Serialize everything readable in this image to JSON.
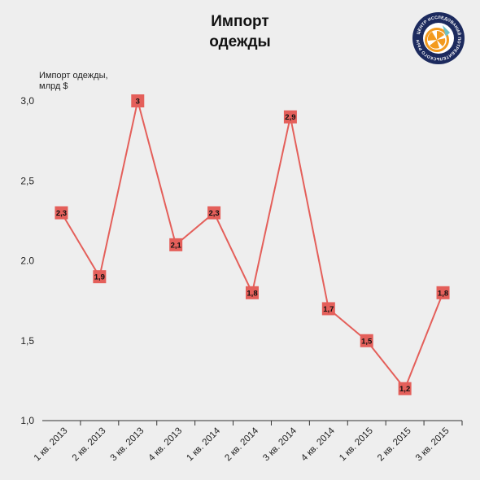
{
  "chart_data": {
    "type": "line",
    "title": [
      "Импорт",
      "одежды"
    ],
    "ylabel": [
      "Импорт одежды,",
      "млрд $"
    ],
    "categories": [
      "1 кв. 2013",
      "2 кв. 2013",
      "3 кв. 2013",
      "4 кв. 2013",
      "1 кв. 2014",
      "2 кв. 2014",
      "3 кв. 2014",
      "4 кв. 2014",
      "1 кв. 2015",
      "2 кв. 2015",
      "3 кв. 2015"
    ],
    "values": [
      2.3,
      1.9,
      3.0,
      2.1,
      2.3,
      1.8,
      2.9,
      1.7,
      1.5,
      1.2,
      1.8
    ],
    "data_labels": [
      "2,3",
      "1,9",
      "3",
      "2,1",
      "2,3",
      "1,8",
      "2,9",
      "1,7",
      "1,5",
      "1,2",
      "1,8"
    ],
    "ylim": [
      1.0,
      3.0
    ],
    "yticks": [
      1.0,
      1.5,
      2.0,
      2.5,
      3.0
    ],
    "ytick_labels": [
      "1,0",
      "1,5",
      "2.0",
      "2,5",
      "3,0"
    ],
    "grid": false,
    "colors": {
      "line": "#e45f5a",
      "marker": "#e45f5a",
      "background": "#eeeeee"
    }
  },
  "logo": {
    "text": "ЦЕНТР ИССЛЕДОВАНИЙ ПОТРЕБИТЕЛЬСКОГО РЫНКА",
    "colors": {
      "ring": "#1c2a5e",
      "orange": "#f39a1e",
      "teal": "#6fc1c7"
    }
  }
}
